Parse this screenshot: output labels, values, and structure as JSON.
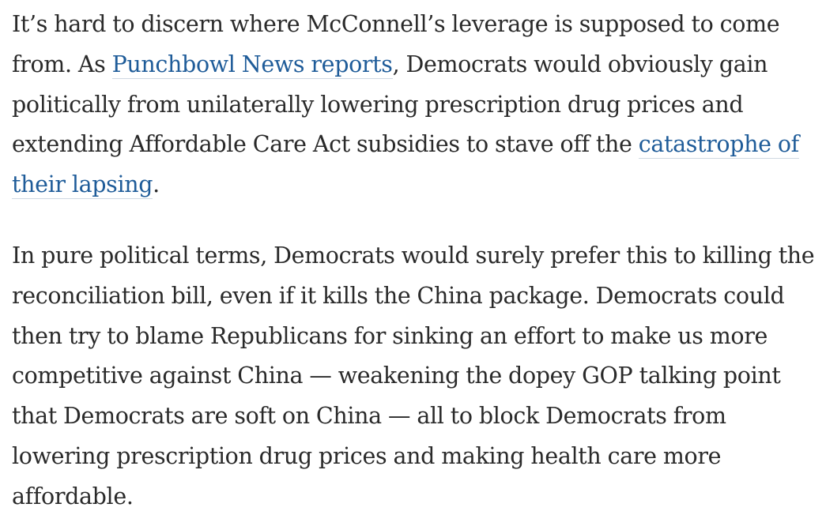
{
  "article": {
    "p1": {
      "l1": "It’s hard to discern where McConnell’s leverage is supposed to come",
      "l2_pre": "from. As ",
      "l2_link": "Punchbowl News reports",
      "l2_post": ", Democrats would obviously gain",
      "l3": "politically from unilaterally lowering prescription drug prices and",
      "l4_pre": "extending Affordable Care Act subsidies to stave off the ",
      "l4_link": "catastrophe of",
      "l5_link": "their lapsing",
      "l5_post": "."
    },
    "p2": {
      "l1": "In pure political terms, Democrats would surely prefer this to killing the",
      "l2": "reconciliation bill, even if it kills the China package. Democrats could",
      "l3": "then try to blame Republicans for sinking an effort to make us more",
      "l4": "competitive against China — weakening the dopey GOP talking point",
      "l5": "that Democrats are soft on China — all to block Democrats from",
      "l6": "lowering prescription drug prices and making health care more",
      "l7": "affordable."
    }
  }
}
